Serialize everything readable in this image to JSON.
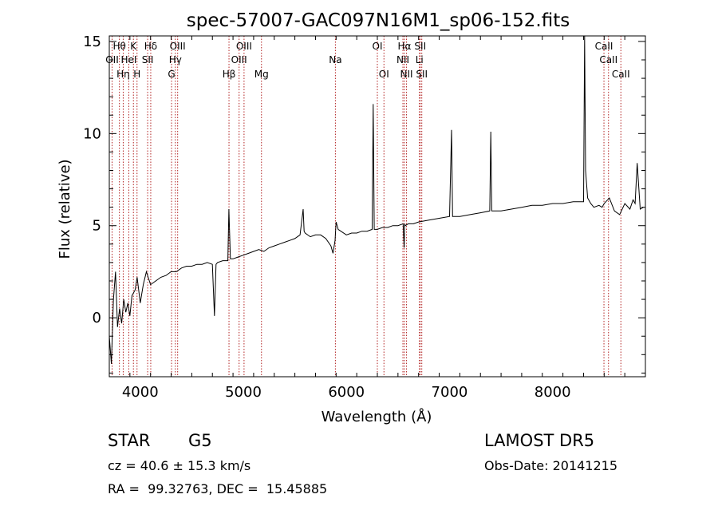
{
  "chart_data": {
    "type": "line",
    "title": "spec-57007-GAC097N16M1_sp06-152.fits",
    "xlabel": "Wavelength (Å)",
    "ylabel": "Flux (relative)",
    "xlim": [
      3700,
      8900
    ],
    "ylim": [
      -3.2,
      15.3
    ],
    "x_ticks": [
      4000,
      5000,
      6000,
      7000,
      8000
    ],
    "y_ticks": [
      0,
      5,
      10,
      15
    ],
    "grid": false,
    "series": [
      {
        "x": [
          3700,
          3720,
          3740,
          3760,
          3780,
          3800,
          3820,
          3840,
          3860,
          3880,
          3900,
          3920,
          3950,
          3970,
          4000,
          4030,
          4060,
          4100,
          4150,
          4200,
          4250,
          4300,
          4350,
          4400,
          4450,
          4500,
          4550,
          4600,
          4650,
          4700,
          4720,
          4735,
          4750,
          4800,
          4850,
          4860,
          4875,
          4880,
          4900,
          4950,
          5000,
          5050,
          5100,
          5150,
          5200,
          5250,
          5300,
          5350,
          5400,
          5450,
          5500,
          5550,
          5580,
          5590,
          5600,
          5650,
          5700,
          5750,
          5800,
          5850,
          5870,
          5890,
          5900,
          5920,
          6000,
          6050,
          6100,
          6150,
          6200,
          6250,
          6260,
          6270,
          6280,
          6300,
          6350,
          6400,
          6450,
          6500,
          6550,
          6560,
          6565,
          6570,
          6600,
          6650,
          6700,
          6800,
          6900,
          7000,
          7020,
          7030,
          7040,
          7100,
          7200,
          7300,
          7390,
          7400,
          7410,
          7500,
          7600,
          7700,
          7800,
          7900,
          8000,
          8100,
          8200,
          8300,
          8310,
          8320,
          8340,
          8370,
          8400,
          8450,
          8480,
          8500,
          8550,
          8600,
          8650,
          8700,
          8750,
          8780,
          8800,
          8820,
          8850,
          8880
        ],
        "y": [
          -1.0,
          -2.5,
          1.0,
          2.5,
          -0.5,
          0.5,
          -0.3,
          1.0,
          0.3,
          0.8,
          0.1,
          1.2,
          1.5,
          2.2,
          0.8,
          1.8,
          2.5,
          1.8,
          2.0,
          2.2,
          2.3,
          2.5,
          2.5,
          2.7,
          2.8,
          2.8,
          2.9,
          2.9,
          3.0,
          2.9,
          0.1,
          2.9,
          3.0,
          3.1,
          3.1,
          5.9,
          3.2,
          3.2,
          3.2,
          3.3,
          3.4,
          3.5,
          3.6,
          3.7,
          3.6,
          3.8,
          3.9,
          4.0,
          4.1,
          4.2,
          4.3,
          4.5,
          5.9,
          4.7,
          4.6,
          4.4,
          4.5,
          4.5,
          4.3,
          3.9,
          3.5,
          4.2,
          5.2,
          4.8,
          4.5,
          4.6,
          4.6,
          4.7,
          4.7,
          4.8,
          11.6,
          4.8,
          4.8,
          4.8,
          4.9,
          4.9,
          5.0,
          5.0,
          5.1,
          3.8,
          5.1,
          5.0,
          5.1,
          5.1,
          5.2,
          5.3,
          5.4,
          5.5,
          10.2,
          5.5,
          5.5,
          5.5,
          5.6,
          5.7,
          5.8,
          10.1,
          5.8,
          5.8,
          5.9,
          6.0,
          6.1,
          6.1,
          6.2,
          6.2,
          6.3,
          6.3,
          16.0,
          8.0,
          6.5,
          6.2,
          6.0,
          6.1,
          6.0,
          6.2,
          6.5,
          5.8,
          5.6,
          6.2,
          5.9,
          6.4,
          6.2,
          8.4,
          5.9,
          6.0
        ]
      }
    ],
    "lines": [
      {
        "wl": 3727,
        "label": "OII",
        "row": 1
      },
      {
        "wl": 3798,
        "label": "Hθ",
        "row": 0
      },
      {
        "wl": 3835,
        "label": "Hη",
        "row": 2
      },
      {
        "wl": 3889,
        "label": "HeI",
        "row": 1
      },
      {
        "wl": 3934,
        "label": "K",
        "row": 0
      },
      {
        "wl": 3969,
        "label": "H",
        "row": 2
      },
      {
        "wl": 4072,
        "label": "SII",
        "row": 1
      },
      {
        "wl": 4102,
        "label": "Hδ",
        "row": 0
      },
      {
        "wl": 4304,
        "label": "G",
        "row": 2
      },
      {
        "wl": 4341,
        "label": "Hγ",
        "row": 1
      },
      {
        "wl": 4363,
        "label": "OIII",
        "row": 0
      },
      {
        "wl": 4861,
        "label": "Hβ",
        "row": 2
      },
      {
        "wl": 4959,
        "label": "OIII",
        "row": 1
      },
      {
        "wl": 5007,
        "label": "OIII",
        "row": 0
      },
      {
        "wl": 5176,
        "label": "Mg",
        "row": 2
      },
      {
        "wl": 5893,
        "label": "Na",
        "row": 1
      },
      {
        "wl": 6300,
        "label": "OI",
        "row": 0
      },
      {
        "wl": 6364,
        "label": "OI",
        "row": 2
      },
      {
        "wl": 6548,
        "label": "NII",
        "row": 1
      },
      {
        "wl": 6563,
        "label": "Hα",
        "row": 0
      },
      {
        "wl": 6583,
        "label": "NII",
        "row": 2
      },
      {
        "wl": 6708,
        "label": "Li",
        "row": 1
      },
      {
        "wl": 6716,
        "label": "SII",
        "row": 0
      },
      {
        "wl": 6731,
        "label": "SII",
        "row": 2
      },
      {
        "wl": 8498,
        "label": "CaII",
        "row": 0
      },
      {
        "wl": 8542,
        "label": "CaII",
        "row": 1
      },
      {
        "wl": 8662,
        "label": "CaII",
        "row": 2
      }
    ]
  },
  "footer": {
    "class_label": "STAR",
    "subclass": "G5",
    "survey": "LAMOST DR5",
    "cz": "cz = 40.6 ± 15.3 km/s",
    "obs_date": "Obs-Date: 20141215",
    "coords": "RA =  99.32763, DEC =  15.45885"
  }
}
